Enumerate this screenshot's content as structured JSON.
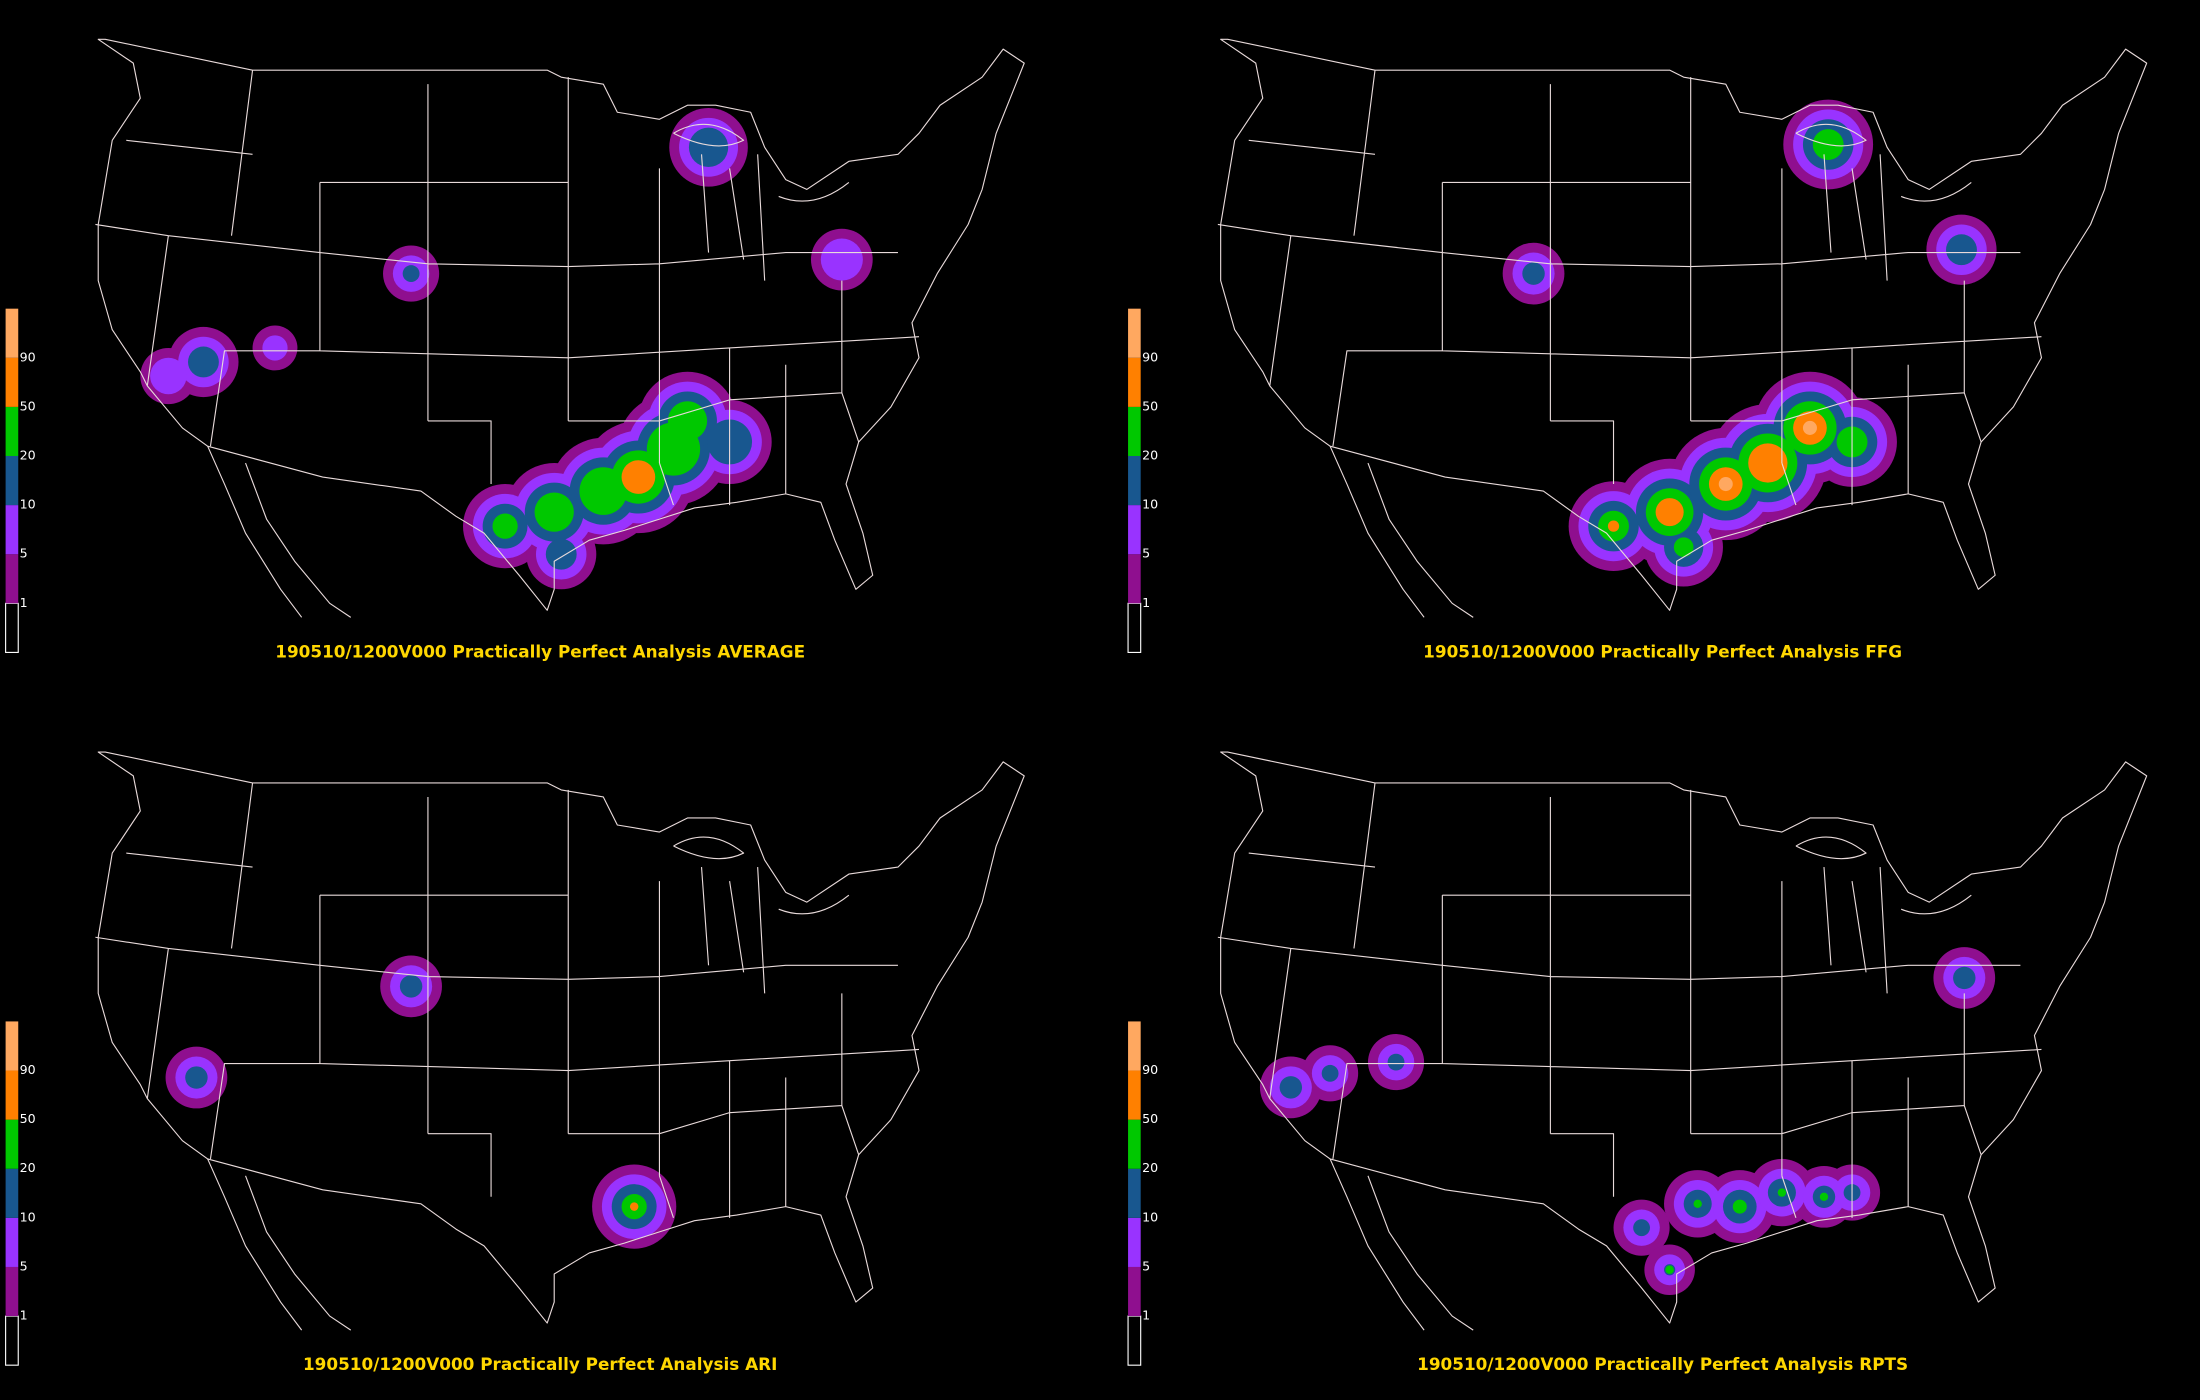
{
  "panels": [
    {
      "title": "190510/1200V000 Practically Perfect Analysis AVERAGE"
    },
    {
      "title": "190510/1200V000 Practically Perfect Analysis FFG"
    },
    {
      "title": "190510/1200V000 Practically Perfect Analysis ARI"
    },
    {
      "title": "190510/1200V000 Practically Perfect Analysis RPTS"
    }
  ],
  "colorbar": {
    "levels": [
      1,
      5,
      10,
      20,
      50,
      90
    ],
    "colors": [
      "#000000",
      "#8f0f8f",
      "#9933ff",
      "#18578f",
      "#00c800",
      "#ff8000",
      "#ffa860"
    ]
  }
}
